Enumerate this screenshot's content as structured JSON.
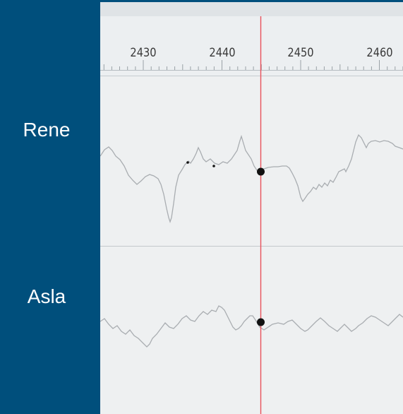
{
  "tracks": [
    {
      "name": "Rene"
    },
    {
      "name": "Asla"
    }
  ],
  "timeline": {
    "tick_labels": [
      "2430",
      "2440",
      "2450",
      "2460"
    ]
  },
  "colors": {
    "sidebar": "#004f7c",
    "panel": "#eef0f1",
    "waveform": "#a9adb1",
    "cursor": "#e8505b",
    "marker": "#111111"
  }
}
